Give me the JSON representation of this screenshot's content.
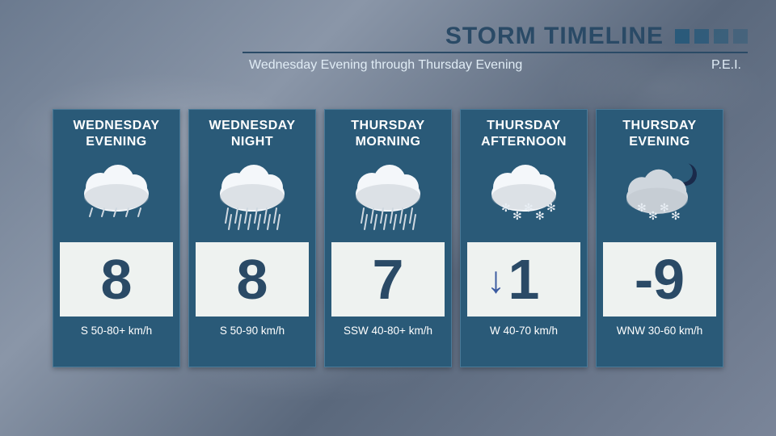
{
  "header": {
    "title": "STORM TIMELINE",
    "subtitle": "Wednesday Evening through Thursday Evening",
    "region": "P.E.I.",
    "title_color": "#2a4a66",
    "accent_color": "#2a5a7a"
  },
  "card_style": {
    "bg": "#2a5a78",
    "border": "#4a7a98",
    "temp_bg": "#eef2f0",
    "temp_color": "#2a4a66"
  },
  "forecast": [
    {
      "day": "WEDNESDAY",
      "part": "EVENING",
      "icon": "rain-light",
      "temp": "8",
      "arrow": false,
      "wind": "S 50-80+ km/h"
    },
    {
      "day": "WEDNESDAY",
      "part": "NIGHT",
      "icon": "rain-heavy",
      "temp": "8",
      "arrow": false,
      "wind": "S 50-90 km/h"
    },
    {
      "day": "THURSDAY",
      "part": "MORNING",
      "icon": "rain-heavy",
      "temp": "7",
      "arrow": false,
      "wind": "SSW 40-80+ km/h"
    },
    {
      "day": "THURSDAY",
      "part": "AFTERNOON",
      "icon": "snow",
      "temp": "1",
      "arrow": true,
      "wind": "W 40-70 km/h"
    },
    {
      "day": "THURSDAY",
      "part": "EVENING",
      "icon": "snow-night",
      "temp": "-9",
      "arrow": false,
      "wind": "WNW 30-60 km/h"
    }
  ]
}
